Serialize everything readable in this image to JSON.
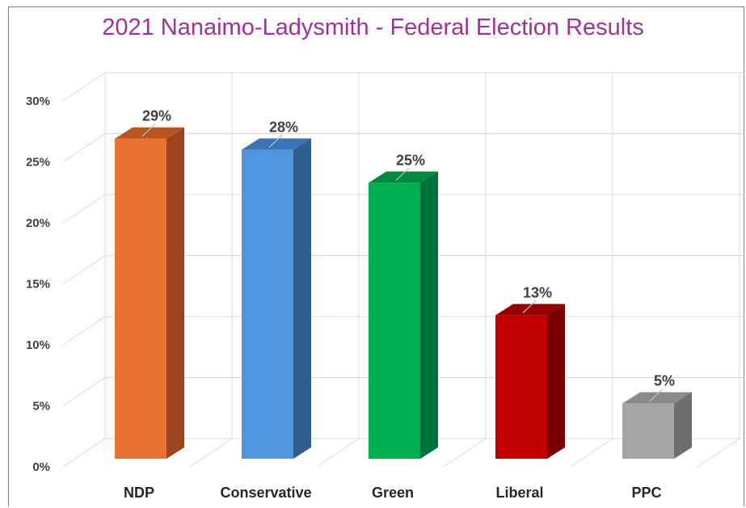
{
  "chart_data": {
    "type": "bar",
    "title": "2021 Nanaimo-Ladysmith - Federal Election Results",
    "categories": [
      "NDP",
      "Conservative",
      "Green",
      "Liberal",
      "PPC"
    ],
    "values": [
      29,
      28,
      25,
      13,
      5
    ],
    "value_labels": [
      "29%",
      "28%",
      "25%",
      "13%",
      "5%"
    ],
    "colors": [
      "#ea7131",
      "#5196dc",
      "#00b050",
      "#c00000",
      "#a6a6a6"
    ],
    "side_colors": [
      "#9c4520",
      "#305e8e",
      "#00733a",
      "#7a0000",
      "#6e6e6e"
    ],
    "top_colors": [
      "#b8541f",
      "#3a74b4",
      "#00893f",
      "#970000",
      "#8a8a8a"
    ],
    "yticks": [
      "0%",
      "5%",
      "10%",
      "15%",
      "20%",
      "25%",
      "30%"
    ],
    "ylim": [
      0,
      30
    ],
    "xlabel": "",
    "ylabel": "",
    "grid": true,
    "style": "3d-column"
  }
}
